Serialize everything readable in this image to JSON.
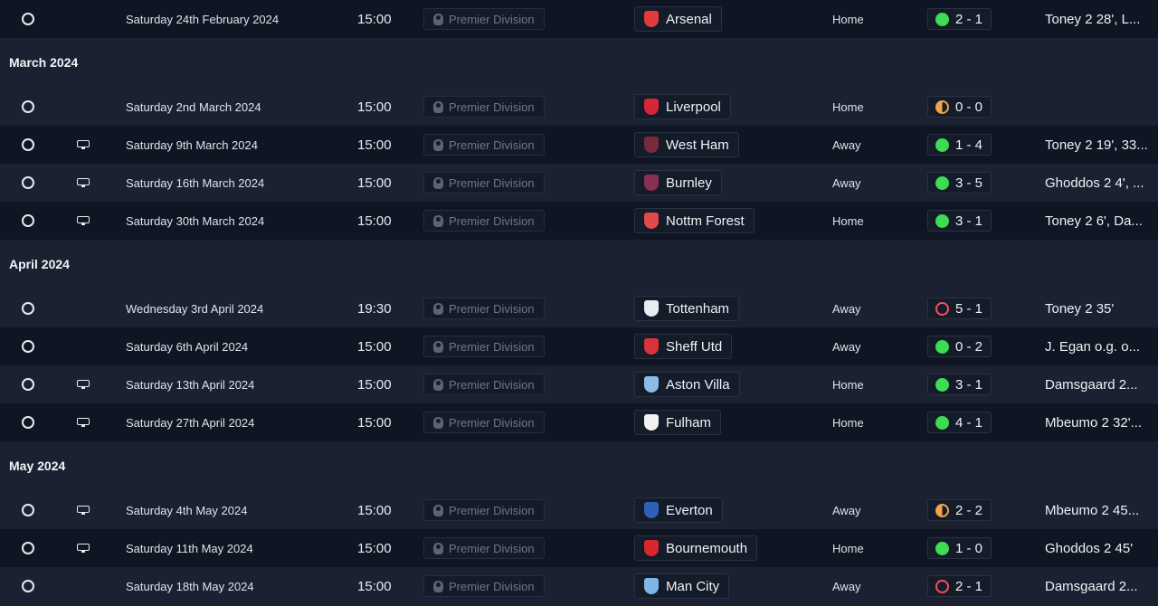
{
  "sections": [
    {
      "type": "row",
      "shade": "dark",
      "tv": false,
      "date": "Saturday 24th February 2024",
      "time": "15:00",
      "competition": "Premier Division",
      "team": "Arsenal",
      "crest_color": "#e23b3b",
      "venue": "Home",
      "result": "win",
      "score": "2 - 1",
      "scorers": "Toney 2 28', L..."
    },
    {
      "type": "month",
      "label": "March 2024"
    },
    {
      "type": "row",
      "shade": "light",
      "tv": false,
      "date": "Saturday 2nd March 2024",
      "time": "15:00",
      "competition": "Premier Division",
      "team": "Liverpool",
      "crest_color": "#d6263a",
      "venue": "Home",
      "result": "draw",
      "score": "0 - 0",
      "scorers": ""
    },
    {
      "type": "row",
      "shade": "dark",
      "tv": true,
      "date": "Saturday 9th March 2024",
      "time": "15:00",
      "competition": "Premier Division",
      "team": "West Ham",
      "crest_color": "#7a2a3c",
      "venue": "Away",
      "result": "win",
      "score": "1 - 4",
      "scorers": "Toney 2 19', 33..."
    },
    {
      "type": "row",
      "shade": "light",
      "tv": true,
      "date": "Saturday 16th March 2024",
      "time": "15:00",
      "competition": "Premier Division",
      "team": "Burnley",
      "crest_color": "#8a2f52",
      "venue": "Away",
      "result": "win",
      "score": "3 - 5",
      "scorers": "Ghoddos 2 4', ..."
    },
    {
      "type": "row",
      "shade": "dark",
      "tv": true,
      "date": "Saturday 30th March 2024",
      "time": "15:00",
      "competition": "Premier Division",
      "team": "Nottm Forest",
      "crest_color": "#e04a4a",
      "venue": "Home",
      "result": "win",
      "score": "3 - 1",
      "scorers": "Toney 2 6', Da..."
    },
    {
      "type": "month",
      "label": "April 2024"
    },
    {
      "type": "row",
      "shade": "light",
      "tv": false,
      "date": "Wednesday 3rd April 2024",
      "time": "19:30",
      "competition": "Premier Division",
      "team": "Tottenham",
      "crest_color": "#e8ebf0",
      "venue": "Away",
      "result": "loss",
      "score": "5 - 1",
      "scorers": "Toney 2 35'"
    },
    {
      "type": "row",
      "shade": "dark",
      "tv": false,
      "date": "Saturday 6th April 2024",
      "time": "15:00",
      "competition": "Premier Division",
      "team": "Sheff Utd",
      "crest_color": "#d9343b",
      "venue": "Away",
      "result": "win",
      "score": "0 - 2",
      "scorers": "J. Egan o.g. o..."
    },
    {
      "type": "row",
      "shade": "light",
      "tv": true,
      "date": "Saturday 13th April 2024",
      "time": "15:00",
      "competition": "Premier Division",
      "team": "Aston Villa",
      "crest_color": "#8dbde6",
      "venue": "Home",
      "result": "win",
      "score": "3 - 1",
      "scorers": "Damsgaard 2..."
    },
    {
      "type": "row",
      "shade": "dark",
      "tv": true,
      "date": "Saturday 27th April 2024",
      "time": "15:00",
      "competition": "Premier Division",
      "team": "Fulham",
      "crest_color": "#f2f2f2",
      "venue": "Home",
      "result": "win",
      "score": "4 - 1",
      "scorers": "Mbeumo 2 32'..."
    },
    {
      "type": "month",
      "label": "May 2024"
    },
    {
      "type": "row",
      "shade": "light",
      "tv": true,
      "date": "Saturday 4th May 2024",
      "time": "15:00",
      "competition": "Premier Division",
      "team": "Everton",
      "crest_color": "#2f5fb8",
      "venue": "Away",
      "result": "draw",
      "score": "2 - 2",
      "scorers": "Mbeumo 2 45..."
    },
    {
      "type": "row",
      "shade": "dark",
      "tv": true,
      "date": "Saturday 11th May 2024",
      "time": "15:00",
      "competition": "Premier Division",
      "team": "Bournemouth",
      "crest_color": "#d7262e",
      "venue": "Home",
      "result": "win",
      "score": "1 - 0",
      "scorers": "Ghoddos 2 45'"
    },
    {
      "type": "row",
      "shade": "light",
      "tv": false,
      "date": "Saturday 18th May 2024",
      "time": "15:00",
      "competition": "Premier Division",
      "team": "Man City",
      "crest_color": "#7fb6e8",
      "venue": "Away",
      "result": "loss",
      "score": "2 - 1",
      "scorers": "Damsgaard 2..."
    }
  ]
}
